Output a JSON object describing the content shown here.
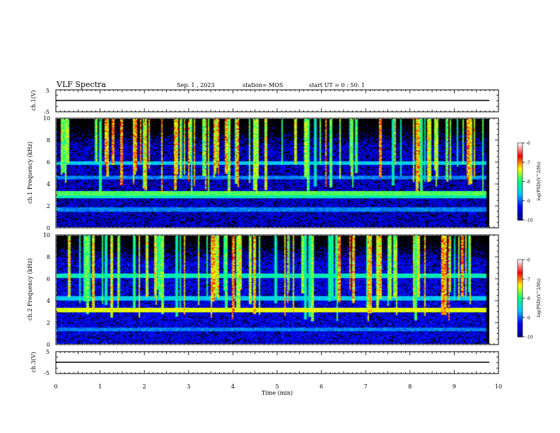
{
  "header": {
    "title": "VLF Spectra",
    "date": "Sep. 1 , 2023",
    "station": "station= MOS",
    "start": "start  UT =  0 : 50: 1"
  },
  "colors": {
    "background": "#ffffff",
    "spectrogram_floor": "#000000",
    "colormap": [
      "#00008c",
      "#0000ff",
      "#00c8ff",
      "#00ff80",
      "#ffff00",
      "#ff0000",
      "#ffffff"
    ],
    "trace": "#000000"
  },
  "chart_data": [
    {
      "type": "line",
      "panel": "ch1-voltage",
      "ylabel": "ch.1(V)",
      "ylim": [
        -5,
        5
      ],
      "ytick_labels": [
        "5",
        "-5"
      ],
      "xlim": [
        0,
        10
      ],
      "series": [
        {
          "x": [
            0,
            9.8
          ],
          "y": [
            0,
            0
          ]
        }
      ]
    },
    {
      "type": "heatmap",
      "panel": "ch1-spectrogram",
      "ylabel": "ch.1  Frequency (kHz)",
      "xlim": [
        0,
        9.8
      ],
      "ylim": [
        0,
        10
      ],
      "ytick_labels": [
        "0",
        "2",
        "4",
        "6",
        "8",
        "10"
      ],
      "colorbar": {
        "label": "log(PSD)(V^2/Hz)",
        "range": [
          -10,
          -6
        ],
        "tick_labels": [
          "-6",
          "-7",
          "-8",
          "-9",
          "-10"
        ]
      },
      "z_description_levels": {
        "noise_floor": -9.6,
        "steady_bands_khz": [
          {
            "freq": 3.1,
            "level": -7.8
          },
          {
            "freq": 2.8,
            "level": -8.3
          },
          {
            "freq": 5.9,
            "level": -8.6
          },
          {
            "freq": 4.6,
            "level": -8.9
          },
          {
            "freq": 1.6,
            "level": -8.9
          }
        ],
        "impulsive_bursts_upper_khz": [
          6,
          10
        ]
      }
    },
    {
      "type": "heatmap",
      "panel": "ch2-spectrogram",
      "ylabel": "ch.2  Frequency (kHz)",
      "xlim": [
        0,
        9.8
      ],
      "ylim": [
        0,
        10
      ],
      "ytick_labels": [
        "0",
        "2",
        "4",
        "6",
        "8",
        "10"
      ],
      "colorbar": {
        "label": "log(PSD)(V^2/Hz)",
        "range": [
          -10,
          -6
        ],
        "tick_labels": [
          "-6",
          "-7",
          "-8",
          "-9",
          "-10"
        ]
      },
      "z_description_levels": {
        "noise_floor": -9.5,
        "steady_bands_khz": [
          {
            "freq": 3.1,
            "level": -7.4
          },
          {
            "freq": 6.3,
            "level": -8.3
          },
          {
            "freq": 4.2,
            "level": -8.6
          },
          {
            "freq": 1.3,
            "level": -8.9
          }
        ],
        "impulsive_bursts_upper_khz": [
          5,
          10
        ]
      }
    },
    {
      "type": "line",
      "panel": "ch3-voltage",
      "ylabel": "ch.3(V)",
      "ylim": [
        -5,
        5
      ],
      "ytick_labels": [
        "5",
        "-5"
      ],
      "xlim": [
        0,
        10
      ],
      "xlabel": "Time  (min)",
      "xtick_labels": [
        "0",
        "1",
        "2",
        "3",
        "4",
        "5",
        "6",
        "7",
        "8",
        "9",
        "10"
      ],
      "series": [
        {
          "x": [
            0,
            9.8
          ],
          "y": [
            0,
            0
          ]
        }
      ]
    }
  ]
}
